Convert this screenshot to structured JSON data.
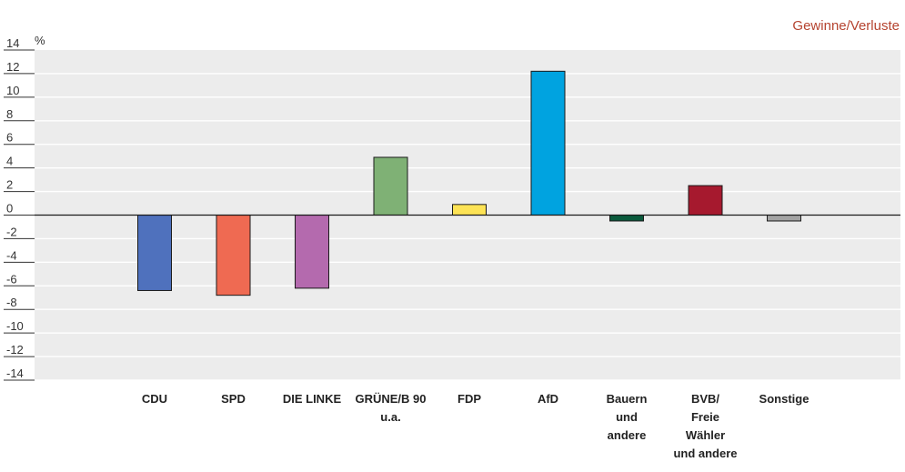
{
  "chart_data": {
    "type": "bar",
    "heading": "Gewinne/Verluste",
    "unit": "%",
    "categories": [
      [
        "CDU"
      ],
      [
        "SPD"
      ],
      [
        "DIE LINKE"
      ],
      [
        "GRÜNE/B 90",
        "u.a."
      ],
      [
        "FDP"
      ],
      [
        "AfD"
      ],
      [
        "Bauern",
        "und",
        "andere"
      ],
      [
        "BVB/",
        "Freie",
        "Wähler",
        "und andere"
      ],
      [
        "Sonstige"
      ]
    ],
    "values": [
      -6.4,
      -6.8,
      -6.2,
      4.9,
      0.9,
      12.2,
      -0.5,
      2.5,
      -0.5
    ],
    "colors": [
      "#4f71bd",
      "#ef6a52",
      "#b46aae",
      "#7fb175",
      "#fde355",
      "#00a3e0",
      "#0a5a3c",
      "#a6192e",
      "#a3a3a3"
    ],
    "ylim": [
      -14,
      14
    ],
    "yticks": [
      -14,
      -12,
      -10,
      -8,
      -6,
      -4,
      -2,
      0,
      2,
      4,
      6,
      8,
      10,
      12,
      14
    ],
    "grid": true,
    "background": "#ececec"
  }
}
